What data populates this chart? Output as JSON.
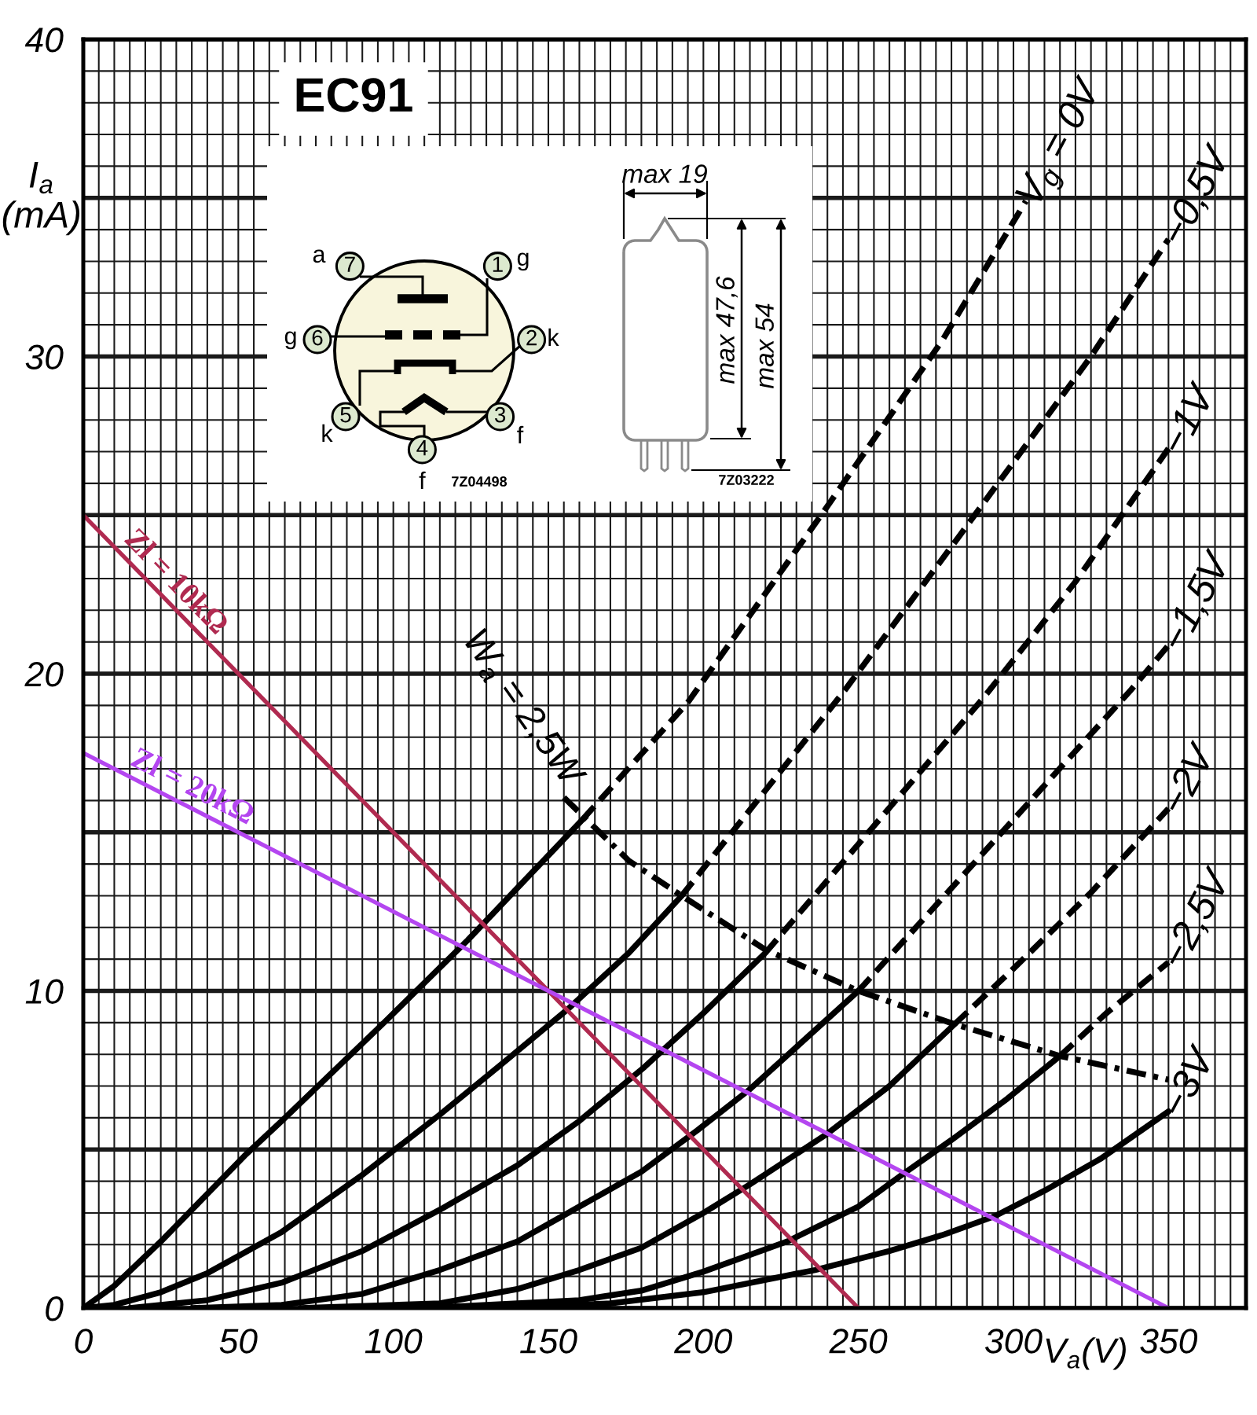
{
  "chart_data": {
    "type": "line",
    "title": "EC91",
    "xlabel": "V$_{a}$(V)",
    "ylabel": "I$_{a}$\n(mA)",
    "xlim": [
      0,
      375
    ],
    "ylim": [
      0,
      40
    ],
    "xticks": [
      0,
      {
        "value": 5,
        "label": null
      },
      {
        "value": 10,
        "label": null
      },
      {
        "value": 15,
        "label": null
      },
      {
        "value": 20,
        "label": null
      },
      {
        "value": 25,
        "label": null
      },
      {
        "value": 30,
        "label": null
      },
      {
        "value": 35,
        "label": null
      },
      {
        "value": 40,
        "label": null
      },
      {
        "value": 45,
        "label": null
      },
      50,
      {
        "value": 55,
        "label": null
      },
      {
        "value": 60,
        "label": null
      },
      {
        "value": 65,
        "label": null
      },
      {
        "value": 70,
        "label": null
      },
      {
        "value": 75,
        "label": null
      },
      {
        "value": 80,
        "label": null
      },
      {
        "value": 85,
        "label": null
      },
      {
        "value": 90,
        "label": null
      },
      {
        "value": 95,
        "label": null
      },
      100,
      {
        "value": 105,
        "label": null
      },
      {
        "value": 110,
        "label": null
      },
      {
        "value": 115,
        "label": null
      },
      {
        "value": 120,
        "label": null
      },
      {
        "value": 125,
        "label": null
      },
      {
        "value": 130,
        "label": null
      },
      {
        "value": 135,
        "label": null
      },
      {
        "value": 140,
        "label": null
      },
      {
        "value": 145,
        "label": null
      },
      150,
      {
        "value": 155,
        "label": null
      },
      {
        "value": 160,
        "label": null
      },
      {
        "value": 165,
        "label": null
      },
      {
        "value": 170,
        "label": null
      },
      {
        "value": 175,
        "label": null
      },
      {
        "value": 180,
        "label": null
      },
      {
        "value": 185,
        "label": null
      },
      {
        "value": 190,
        "label": null
      },
      {
        "value": 195,
        "label": null
      },
      200,
      {
        "value": 205,
        "label": null
      },
      {
        "value": 210,
        "label": null
      },
      {
        "value": 215,
        "label": null
      },
      {
        "value": 220,
        "label": null
      },
      {
        "value": 225,
        "label": null
      },
      {
        "value": 230,
        "label": null
      },
      {
        "value": 235,
        "label": null
      },
      {
        "value": 240,
        "label": null
      },
      {
        "value": 245,
        "label": null
      },
      250,
      {
        "value": 255,
        "label": null
      },
      {
        "value": 260,
        "label": null
      },
      {
        "value": 265,
        "label": null
      },
      {
        "value": 270,
        "label": null
      },
      {
        "value": 275,
        "label": null
      },
      {
        "value": 280,
        "label": null
      },
      {
        "value": 285,
        "label": null
      },
      {
        "value": 290,
        "label": null
      },
      {
        "value": 295,
        "label": null
      },
      300,
      {
        "value": 305,
        "label": null
      },
      {
        "value": 310,
        "label": null
      },
      {
        "value": 315,
        "label": null
      },
      {
        "value": 320,
        "label": null
      },
      {
        "value": 325,
        "label": null
      },
      {
        "value": 330,
        "label": null
      },
      {
        "value": 335,
        "label": null
      },
      {
        "value": 340,
        "label": null
      },
      {
        "value": 345,
        "label": null
      },
      350,
      {
        "value": 355,
        "label": null
      },
      {
        "value": 360,
        "label": null
      },
      {
        "value": 365,
        "label": null
      },
      {
        "value": 370,
        "label": null
      }
    ],
    "yticks": [
      0,
      {
        "value": 1,
        "label": null
      },
      {
        "value": 2,
        "label": null
      },
      {
        "value": 3,
        "label": null
      },
      {
        "value": 4,
        "label": null
      },
      {
        "value": 5,
        "label": null
      },
      {
        "value": 6,
        "label": null
      },
      {
        "value": 7,
        "label": null
      },
      {
        "value": 8,
        "label": null
      },
      {
        "value": 9,
        "label": null
      },
      10,
      {
        "value": 11,
        "label": null
      },
      {
        "value": 12,
        "label": null
      },
      {
        "value": 13,
        "label": null
      },
      {
        "value": 14,
        "label": null
      },
      {
        "value": 15,
        "label": null
      },
      {
        "value": 16,
        "label": null
      },
      {
        "value": 17,
        "label": null
      },
      {
        "value": 18,
        "label": null
      },
      {
        "value": 19,
        "label": null
      },
      20,
      {
        "value": 21,
        "label": null
      },
      {
        "value": 22,
        "label": null
      },
      {
        "value": 23,
        "label": null
      },
      {
        "value": 24,
        "label": null
      },
      {
        "value": 25,
        "label": null
      },
      {
        "value": 26,
        "label": null
      },
      {
        "value": 27,
        "label": null
      },
      {
        "value": 28,
        "label": null
      },
      {
        "value": 29,
        "label": null
      },
      30,
      {
        "value": 31,
        "label": null
      },
      {
        "value": 32,
        "label": null
      },
      {
        "value": 33,
        "label": null
      },
      {
        "value": 34,
        "label": null
      },
      {
        "value": 35,
        "label": null
      },
      {
        "value": 36,
        "label": null
      },
      {
        "value": 37,
        "label": null
      },
      {
        "value": 38,
        "label": null
      },
      {
        "value": 39,
        "label": null
      },
      40
    ],
    "grid": true,
    "series": [
      {
        "color": "#000000",
        "line_style": "solid",
        "x": [
          0,
          10,
          25,
          52,
          64,
          97,
          124,
          161
        ],
        "values": [
          0,
          0.7,
          2.1,
          4.8,
          5.9,
          9.0,
          11.6,
          15.4
        ]
      },
      {
        "name": "V$_{g}$ = 0V",
        "color": "#000000",
        "line_style": "dashed",
        "x": [
          161,
          195,
          238,
          277,
          304
        ],
        "values": [
          15.4,
          19.1,
          25.0,
          30.5,
          34.9
        ]
      },
      {
        "color": "#000000",
        "line_style": "solid",
        "x": [
          0,
          10,
          25,
          40,
          64,
          90,
          115,
          135,
          156,
          176,
          193
        ],
        "values": [
          0,
          0.1,
          0.5,
          1.1,
          2.4,
          4.2,
          6.1,
          7.7,
          9.4,
          11.2,
          13.0
        ]
      },
      {
        "name": "−0,5V",
        "color": "#000000",
        "line_style": "dashed",
        "x": [
          193,
          245,
          283,
          325,
          350
        ],
        "values": [
          13.0,
          19.4,
          24.4,
          30.0,
          33.7
        ]
      },
      {
        "color": "#000000",
        "line_style": "solid",
        "x": [
          15,
          40,
          64,
          90,
          115,
          140,
          160,
          181,
          200,
          220
        ],
        "values": [
          0,
          0.25,
          0.8,
          1.8,
          3.1,
          4.5,
          5.9,
          7.6,
          9.3,
          11.2
        ]
      },
      {
        "name": "−1V",
        "color": "#000000",
        "line_style": "dashed",
        "x": [
          220,
          290,
          320,
          350
        ],
        "values": [
          11.2,
          19.2,
          22.9,
          27.1
        ]
      },
      {
        "color": "#000000",
        "line_style": "solid",
        "x": [
          35,
          64,
          90,
          115,
          140,
          160,
          180,
          198,
          215,
          250
        ],
        "values": [
          0,
          0.1,
          0.45,
          1.2,
          2.1,
          3.2,
          4.3,
          5.6,
          6.9,
          10.0
        ]
      },
      {
        "name": "−1,5V",
        "color": "#000000",
        "line_style": "dashed",
        "x": [
          250,
          300,
          338,
          350
        ],
        "values": [
          10.0,
          15.4,
          19.5,
          20.9
        ]
      },
      {
        "color": "#000000",
        "line_style": "solid",
        "x": [
          70,
          115,
          140,
          160,
          180,
          200,
          215,
          240,
          260,
          281
        ],
        "values": [
          0,
          0.15,
          0.6,
          1.2,
          1.9,
          3.0,
          3.9,
          5.5,
          7.0,
          8.95
        ]
      },
      {
        "name": "−2V",
        "color": "#000000",
        "line_style": "dashed",
        "x": [
          281,
          300,
          325,
          350
        ],
        "values": [
          8.95,
          10.7,
          13.1,
          15.75
        ]
      },
      {
        "color": "#000000",
        "line_style": "solid",
        "x": [
          110,
          160,
          180,
          200,
          227,
          250,
          264,
          280,
          298,
          315
        ],
        "values": [
          0,
          0.25,
          0.55,
          1.15,
          2.1,
          3.2,
          4.2,
          5.3,
          6.6,
          7.95
        ]
      },
      {
        "name": "−2,5V",
        "color": "#000000",
        "line_style": "dashed",
        "x": [
          315,
          330,
          350
        ],
        "values": [
          7.95,
          9.3,
          10.9
        ]
      },
      {
        "name": "−3V",
        "color": "#000000",
        "line_style": "solid",
        "x": [
          140,
          170,
          200,
          236,
          260,
          277,
          294,
          310,
          328,
          350
        ],
        "values": [
          0,
          0.15,
          0.5,
          1.2,
          1.8,
          2.3,
          2.9,
          3.7,
          4.7,
          6.2
        ]
      },
      {
        "name": "W$_{a}$ = 2,5W",
        "color": "#000000",
        "line_style": "dashdot",
        "x": [
          155,
          176,
          193,
          220,
          250,
          281,
          315,
          350
        ],
        "values": [
          16.1,
          14.1,
          13.0,
          11.3,
          10.0,
          8.95,
          7.95,
          7.2
        ]
      },
      {
        "name": "Zl = 10kΩ",
        "color": "#b02a50",
        "line_style": "solid",
        "x": [
          0,
          250
        ],
        "values": [
          25,
          0
        ]
      },
      {
        "name": "Zl = 20kΩ",
        "color": "#b446f0",
        "line_style": "solid",
        "x": [
          0,
          350
        ],
        "values": [
          17.5,
          0
        ]
      }
    ],
    "annotations": [
      "a",
      "7",
      "1",
      "g",
      "g",
      "6",
      "2",
      "k",
      "5",
      "k",
      "3",
      "f",
      "4",
      "f",
      "7Z04498",
      "max 19",
      "max 47,6",
      "max 54",
      "7Z03222"
    ]
  }
}
